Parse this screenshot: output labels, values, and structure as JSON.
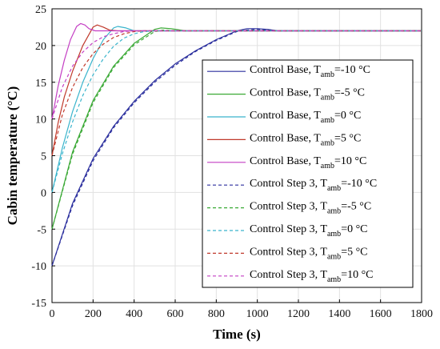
{
  "chart_data": {
    "type": "line",
    "title": "",
    "xlabel": "Time (s)",
    "ylabel": "Cabin temperature (°C)",
    "xlim": [
      0,
      1800
    ],
    "ylim": [
      -15,
      25
    ],
    "xticks": [
      0,
      200,
      400,
      600,
      800,
      1000,
      1200,
      1400,
      1600,
      1800
    ],
    "yticks": [
      -15,
      -10,
      -5,
      0,
      5,
      10,
      15,
      20,
      25
    ],
    "grid": true,
    "legend_position": "right",
    "series": [
      {
        "name": "Control Base, T_amb=-10 °C",
        "label_main": "Control Base, T",
        "label_sub": "amb",
        "label_tail": "=-10 °C",
        "color": "#2b2f9e",
        "dash": false,
        "x": [
          0,
          100,
          200,
          300,
          400,
          500,
          600,
          700,
          800,
          900,
          950,
          1000,
          1050,
          1100,
          1200,
          1800
        ],
        "y": [
          -10,
          -1.5,
          4.6,
          9.0,
          12.4,
          15.2,
          17.5,
          19.3,
          20.8,
          22.0,
          22.3,
          22.3,
          22.2,
          22.0,
          22.0,
          22.0
        ]
      },
      {
        "name": "Control Base, T_amb=-5 °C",
        "label_main": "Control Base, T",
        "label_sub": "amb",
        "label_tail": "=-5 °C",
        "color": "#3aa935",
        "dash": false,
        "x": [
          0,
          100,
          200,
          300,
          400,
          500,
          530,
          580,
          650,
          800,
          1800
        ],
        "y": [
          -5,
          5.5,
          12.5,
          17.2,
          20.3,
          22.2,
          22.4,
          22.3,
          22.0,
          22.0,
          22.0
        ]
      },
      {
        "name": "Control Base, T_amb=0 °C",
        "label_main": "Control Base, T",
        "label_sub": "amb",
        "label_tail": "=0 °C",
        "color": "#39b4cc",
        "dash": false,
        "x": [
          0,
          50,
          100,
          150,
          200,
          250,
          300,
          320,
          360,
          400,
          500,
          1800
        ],
        "y": [
          0,
          6.0,
          11.0,
          15.0,
          18.2,
          20.8,
          22.4,
          22.6,
          22.4,
          22.0,
          22.0,
          22.0
        ]
      },
      {
        "name": "Control Base, T_amb=5 °C",
        "label_main": "Control Base, T",
        "label_sub": "amb",
        "label_tail": "=5 °C",
        "color": "#c0392b",
        "dash": false,
        "x": [
          0,
          30,
          60,
          100,
          150,
          200,
          220,
          250,
          280,
          320,
          400,
          1800
        ],
        "y": [
          5,
          9.5,
          13.0,
          16.5,
          20.0,
          22.5,
          22.8,
          22.5,
          22.1,
          22.0,
          22.0,
          22.0
        ]
      },
      {
        "name": "Control Base, T_amb=10 °C",
        "label_main": "Control Base, T",
        "label_sub": "amb",
        "label_tail": "=10 °C",
        "color": "#c43fc4",
        "dash": false,
        "x": [
          0,
          30,
          60,
          90,
          120,
          140,
          160,
          180,
          210,
          250,
          300,
          1800
        ],
        "y": [
          10,
          14.5,
          18.0,
          20.8,
          22.6,
          23.0,
          22.8,
          22.3,
          22.0,
          22.0,
          22.0,
          22.0
        ]
      },
      {
        "name": "Control Step 3, T_amb=-10 °C",
        "label_main": "Control Step 3, T",
        "label_sub": "amb",
        "label_tail": "=-10 °C",
        "color": "#2b2f9e",
        "dash": true,
        "x": [
          0,
          100,
          200,
          300,
          400,
          500,
          600,
          700,
          800,
          900,
          950,
          1000,
          1050,
          1100,
          1800
        ],
        "y": [
          -10,
          -1.8,
          4.3,
          8.8,
          12.2,
          15.0,
          17.3,
          19.2,
          20.7,
          21.9,
          22.1,
          22.2,
          22.1,
          22.0,
          22.0
        ]
      },
      {
        "name": "Control Step 3, T_amb=-5 °C",
        "label_main": "Control Step 3, T",
        "label_sub": "amb",
        "label_tail": "=-5 °C",
        "color": "#3aa935",
        "dash": true,
        "x": [
          0,
          100,
          200,
          300,
          400,
          500,
          540,
          600,
          700,
          1800
        ],
        "y": [
          -5,
          5.2,
          12.2,
          17.0,
          20.1,
          21.9,
          22.1,
          22.0,
          22.0,
          22.0
        ]
      },
      {
        "name": "Control Step 3, T_amb=0 °C",
        "label_main": "Control Step 3, T",
        "label_sub": "amb",
        "label_tail": "=0 °C",
        "color": "#39b4cc",
        "dash": true,
        "x": [
          0,
          50,
          100,
          150,
          200,
          250,
          300,
          350,
          400,
          450,
          500,
          1800
        ],
        "y": [
          0,
          5.2,
          9.6,
          13.2,
          16.0,
          18.2,
          19.9,
          21.0,
          21.6,
          21.9,
          22.0,
          22.0
        ]
      },
      {
        "name": "Control Step 3, T_amb=5 °C",
        "label_main": "Control Step 3, T",
        "label_sub": "amb",
        "label_tail": "=5 °C",
        "color": "#c0392b",
        "dash": true,
        "x": [
          0,
          50,
          100,
          150,
          200,
          250,
          300,
          350,
          400,
          450,
          1800
        ],
        "y": [
          5,
          10.5,
          14.3,
          17.0,
          18.9,
          20.2,
          21.1,
          21.6,
          21.9,
          22.0,
          22.0
        ]
      },
      {
        "name": "Control Step 3, T_amb=10 °C",
        "label_main": "Control Step 3, T",
        "label_sub": "amb",
        "label_tail": "=10 °C",
        "color": "#c43fc4",
        "dash": true,
        "x": [
          0,
          50,
          100,
          150,
          200,
          250,
          300,
          350,
          400,
          1800
        ],
        "y": [
          10,
          14.3,
          17.2,
          19.1,
          20.4,
          21.2,
          21.6,
          21.9,
          22.0,
          22.0
        ]
      }
    ]
  }
}
